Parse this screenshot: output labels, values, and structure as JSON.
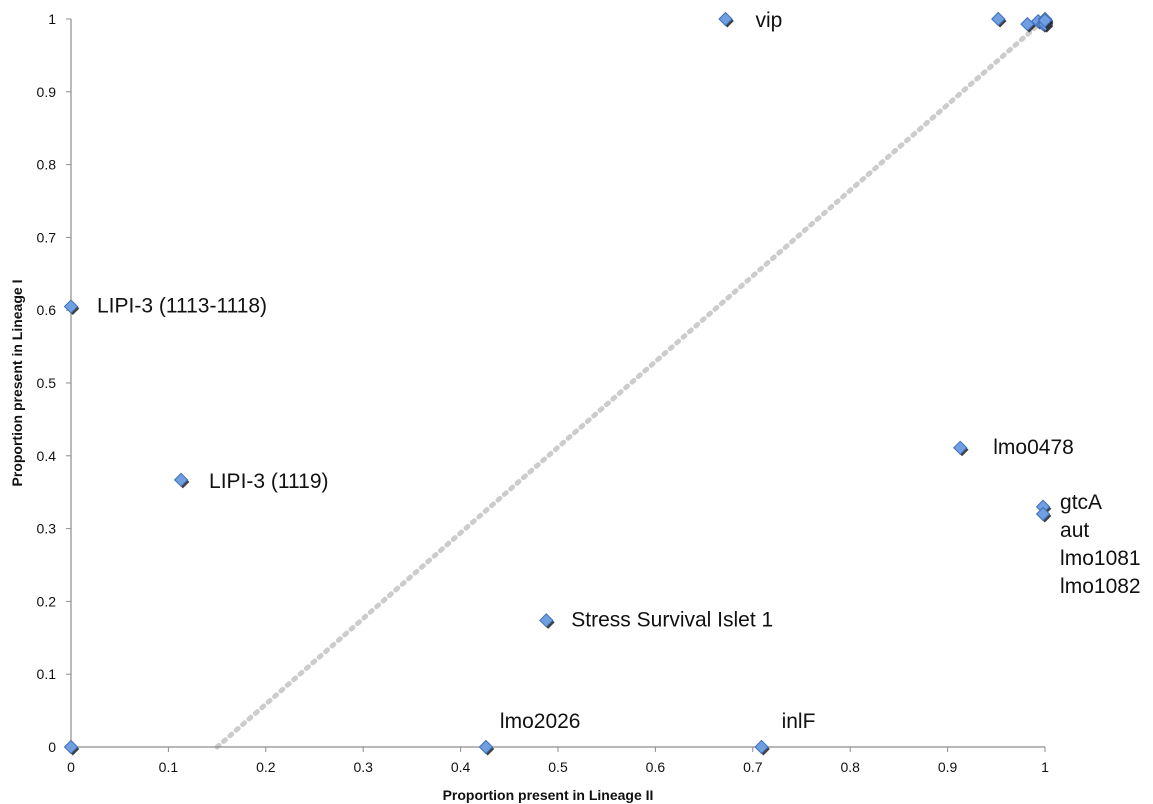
{
  "chart_data": {
    "type": "scatter",
    "title": "",
    "xlabel": "Proportion present in Lineage II",
    "ylabel": "Proportion present in Lineage I",
    "xlim": [
      0,
      1
    ],
    "ylim": [
      0,
      1
    ],
    "x_ticks": [
      "0",
      "0.1",
      "0.2",
      "0.3",
      "0.4",
      "0.5",
      "0.6",
      "0.7",
      "0.8",
      "0.9",
      "1"
    ],
    "y_ticks": [
      "0",
      "0.1",
      "0.2",
      "0.3",
      "0.4",
      "0.5",
      "0.6",
      "0.7",
      "0.8",
      "0.9",
      "1"
    ],
    "grid": false,
    "marker": "diamond",
    "marker_color": "#6f9fe0",
    "trendline": {
      "style": "dotted",
      "color": "#cccccc",
      "from": [
        0.15,
        0
      ],
      "to": [
        1.0,
        1.0
      ]
    },
    "points": [
      {
        "x": 0.0,
        "y": 0.0
      },
      {
        "x": 0.0,
        "y": 0.605
      },
      {
        "x": 0.113,
        "y": 0.367
      },
      {
        "x": 0.426,
        "y": 0.0
      },
      {
        "x": 0.488,
        "y": 0.174
      },
      {
        "x": 0.672,
        "y": 1.0
      },
      {
        "x": 0.709,
        "y": 0.0
      },
      {
        "x": 0.913,
        "y": 0.411
      },
      {
        "x": 0.952,
        "y": 1.0
      },
      {
        "x": 0.982,
        "y": 0.993
      },
      {
        "x": 0.993,
        "y": 0.997
      },
      {
        "x": 0.998,
        "y": 0.33
      },
      {
        "x": 0.998,
        "y": 0.32
      },
      {
        "x": 0.998,
        "y": 0.993
      },
      {
        "x": 1.0,
        "y": 1.0
      },
      {
        "x": 1.0,
        "y": 0.996
      },
      {
        "x": 1.0,
        "y": 0.993
      },
      {
        "x": 1.0,
        "y": 0.998
      }
    ],
    "annotations": [
      {
        "text": "vip",
        "x": 0.672,
        "y": 1.0,
        "dx": 30,
        "dy": 8
      },
      {
        "text": "LIPI-3 (1113-1118)",
        "x": 0.0,
        "y": 0.605,
        "dx": 26,
        "dy": 6
      },
      {
        "text": "LIPI-3 (1119)",
        "x": 0.113,
        "y": 0.367,
        "dx": 28,
        "dy": 8
      },
      {
        "text": "lmo0478",
        "x": 0.913,
        "y": 0.411,
        "dx": 33,
        "dy": 6
      },
      {
        "text": "gtcA",
        "x": 0.998,
        "y": 0.33,
        "dx": 17,
        "dy": 2
      },
      {
        "text": "aut",
        "x": 0.998,
        "y": 0.33,
        "dx": 17,
        "dy": 30
      },
      {
        "text": "lmo1081",
        "x": 0.998,
        "y": 0.33,
        "dx": 17,
        "dy": 58
      },
      {
        "text": "lmo1082",
        "x": 0.998,
        "y": 0.33,
        "dx": 17,
        "dy": 86
      },
      {
        "text": "Stress Survival Islet 1",
        "x": 0.488,
        "y": 0.174,
        "dx": 25,
        "dy": 6
      },
      {
        "text": "lmo2026",
        "x": 0.426,
        "y": 0.0,
        "dx": 14,
        "dy": -19
      },
      {
        "text": "inlF",
        "x": 0.709,
        "y": 0.0,
        "dx": 20,
        "dy": -19
      }
    ]
  }
}
